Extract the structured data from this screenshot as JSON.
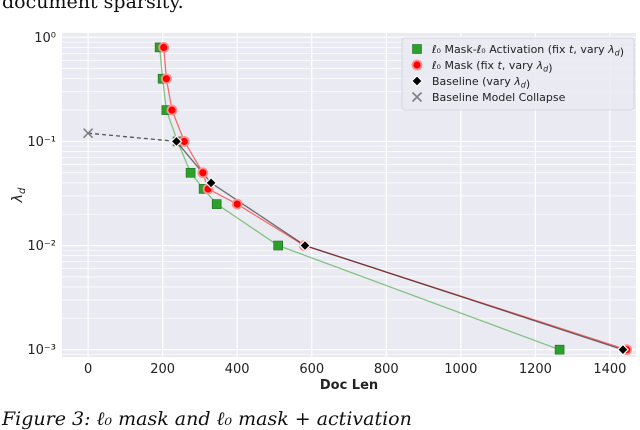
{
  "caption": {
    "top": "document sparsity.",
    "bottom": "Figure 3: ℓ₀ mask and ℓ₀ mask + activation"
  },
  "chart_data": {
    "type": "line",
    "xlabel": "Doc Len",
    "ylabel": "λ_d",
    "x_ticks": [
      0,
      200,
      400,
      600,
      800,
      1000,
      1200,
      1400
    ],
    "x_tick_labels": [
      "0",
      "200",
      "400",
      "600",
      "800",
      "1000",
      "1200",
      "1400"
    ],
    "xlim": [
      -70,
      1470
    ],
    "y_scale": "log",
    "ylim": [
      0.00085,
      1.1
    ],
    "y_ticks": [
      0.001,
      0.01,
      0.1,
      1
    ],
    "y_tick_labels": [
      "10⁻³",
      "10⁻²",
      "10⁻¹",
      "10⁰"
    ],
    "grid": true,
    "legend_position": "top-right",
    "series": [
      {
        "name": "ℓ₀ Mask-ℓ₀ Activation (fix t, vary λd)",
        "legend_parts": [
          "ℓ₀ Mask-ℓ₀ Activation (fix ",
          "t",
          ", vary ",
          "λ",
          "d",
          ")"
        ],
        "color": "#2ca02c",
        "marker": "square",
        "points": [
          [
            192,
            0.8
          ],
          [
            200,
            0.4
          ],
          [
            210,
            0.2
          ],
          [
            240,
            0.1
          ],
          [
            275,
            0.05
          ],
          [
            310,
            0.035
          ],
          [
            345,
            0.025
          ],
          [
            510,
            0.01
          ],
          [
            1265,
            0.001
          ]
        ]
      },
      {
        "name": "ℓ₀ Mask (fix t, vary λd)",
        "legend_parts": [
          "ℓ₀ Mask (fix ",
          "t",
          ", vary ",
          "λ",
          "d",
          ")"
        ],
        "color": "#ff0000",
        "marker": "circle",
        "points": [
          [
            203,
            0.8
          ],
          [
            210,
            0.4
          ],
          [
            225,
            0.2
          ],
          [
            258,
            0.1
          ],
          [
            308,
            0.05
          ],
          [
            322,
            0.035
          ],
          [
            400,
            0.025
          ],
          [
            580,
            0.01
          ],
          [
            1445,
            0.001
          ]
        ]
      },
      {
        "name": "Baseline (vary λd)",
        "legend_parts": [
          "Baseline (vary ",
          "λ",
          "d",
          ")"
        ],
        "color": "#000000",
        "marker": "diamond",
        "points": [
          [
            237,
            0.1
          ],
          [
            330,
            0.04
          ],
          [
            582,
            0.01
          ],
          [
            1435,
            0.001
          ]
        ]
      },
      {
        "name": "Baseline Model Collapse",
        "legend_parts": [
          "Baseline Model Collapse"
        ],
        "color": "#808080",
        "marker": "x",
        "points": [
          [
            0,
            0.12
          ]
        ]
      }
    ],
    "collapse_link": [
      [
        0,
        0.12
      ],
      [
        237,
        0.1
      ]
    ]
  }
}
